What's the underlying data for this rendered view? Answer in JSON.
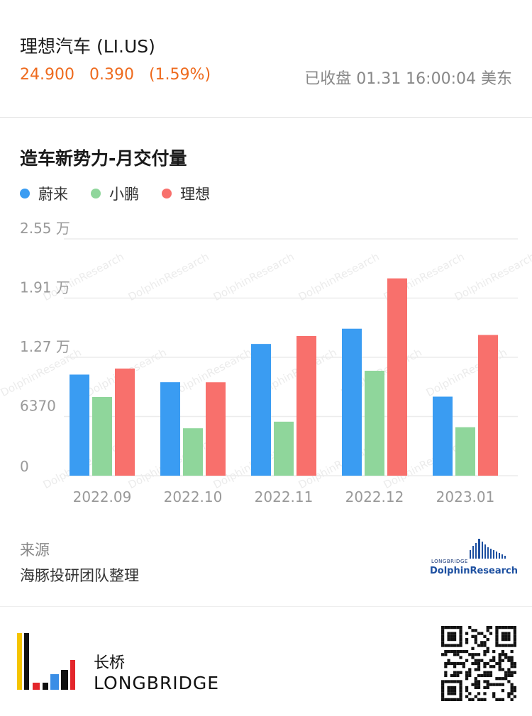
{
  "stock": {
    "name": "理想汽车 (LI.US)",
    "price": "24.900",
    "change": "0.390",
    "change_pct": "(1.59%)",
    "status": "已收盘 01.31 16:00:04 美东",
    "price_color": "#ee6a1d"
  },
  "chart_data": {
    "type": "bar",
    "title": "造车新势力-月交付量",
    "categories": [
      "2022.09",
      "2022.10",
      "2022.11",
      "2022.12",
      "2023.01"
    ],
    "series": [
      {
        "name": "蔚来",
        "color": "#3a9cf2",
        "values": [
          10878,
          10059,
          14178,
          15815,
          8506
        ]
      },
      {
        "name": "小鹏",
        "color": "#8fd69b",
        "values": [
          8468,
          5101,
          5811,
          11292,
          5218
        ]
      },
      {
        "name": "理想",
        "color": "#f8706c",
        "values": [
          11531,
          10052,
          15034,
          21233,
          15141
        ]
      }
    ],
    "y_ticks": [
      {
        "value": 0,
        "label": "0"
      },
      {
        "value": 6370,
        "label": "6370"
      },
      {
        "value": 12740,
        "label": "1.27 万"
      },
      {
        "value": 19110,
        "label": "1.91 万"
      },
      {
        "value": 25480,
        "label": "2.55 万"
      }
    ],
    "ylim": [
      0,
      25480
    ],
    "grid": true,
    "legend_position": "top-left"
  },
  "source": {
    "label": "来源",
    "text": "海豚投研团队整理"
  },
  "watermark": {
    "brand_small": "LONGBRIDGE",
    "brand_big": "DolphinResearch"
  },
  "footer": {
    "brand_cn": "长桥",
    "brand_en": "LONGBRIDGE",
    "logo_colors": [
      "#f5c400",
      "#e3262b",
      "#3a8ee6",
      "#111111"
    ]
  }
}
